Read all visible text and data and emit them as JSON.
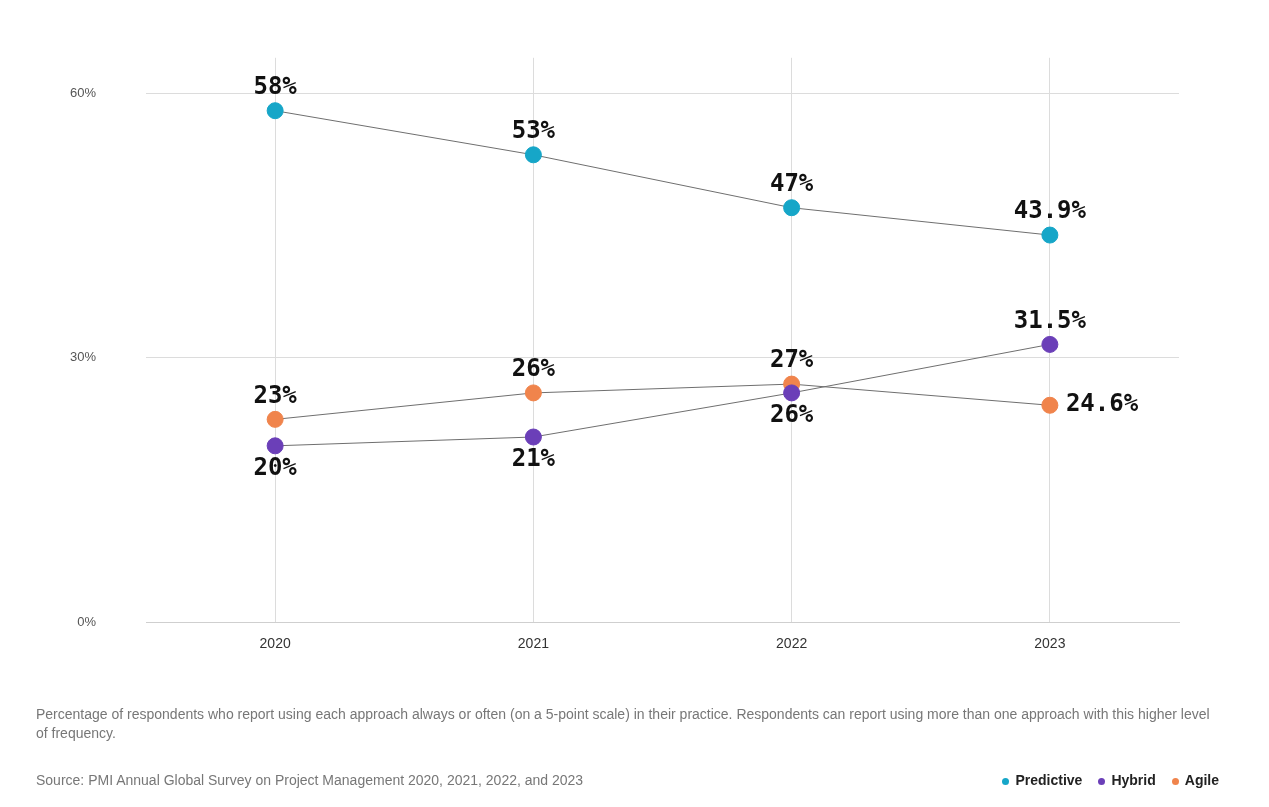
{
  "chart_data": {
    "type": "line",
    "categories": [
      "2020",
      "2021",
      "2022",
      "2023"
    ],
    "series": [
      {
        "name": "Predictive",
        "color": "#16a6c8",
        "values": [
          58,
          53,
          47,
          43.9
        ],
        "value_labels": [
          "58%",
          "53%",
          "47%",
          "43.9%"
        ]
      },
      {
        "name": "Hybrid",
        "color": "#6b3fb8",
        "values": [
          20,
          21,
          26,
          31.5
        ],
        "value_labels": [
          "20%",
          "21%",
          "26%",
          "31.5%"
        ]
      },
      {
        "name": "Agile",
        "color": "#f0844c",
        "values": [
          23,
          26,
          27,
          24.6
        ],
        "value_labels": [
          "23%",
          "26%",
          "27%",
          "24.6%"
        ]
      }
    ],
    "ylim": [
      0,
      64
    ],
    "yticks": [
      {
        "value": 0,
        "label": "0%"
      },
      {
        "value": 30,
        "label": "30%"
      },
      {
        "value": 60,
        "label": "60%"
      }
    ],
    "grid": true,
    "marker": "circle",
    "line_style": "solid",
    "legend": "bottom right",
    "annotations": [
      "Percentage of respondents who report using each approach always or often (on a 5-point scale) in their practice. Respondents can report using more than one approach with this higher level of frequency.",
      "Source: PMI Annual Global Survey on Project Management 2020, 2021, 2022, and 2023"
    ]
  }
}
